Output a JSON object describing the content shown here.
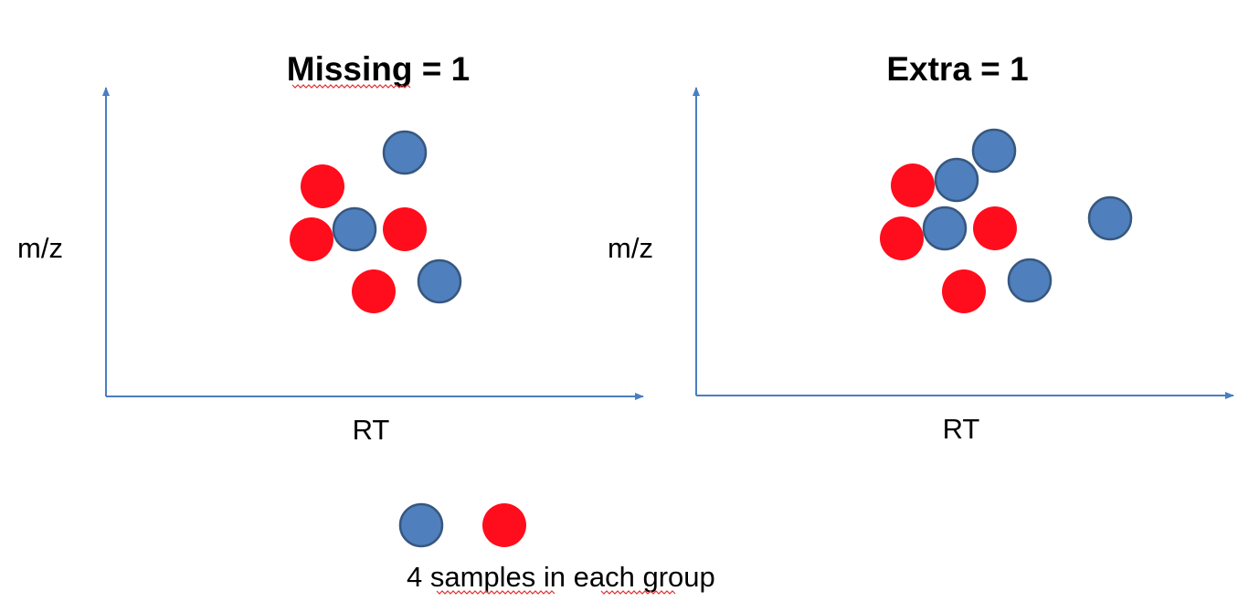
{
  "colors": {
    "axis": "#4a7ec0",
    "blue_fill": "#4f80bd",
    "blue_stroke": "#37577f",
    "red_fill": "#ff0d1c",
    "spellcheck_underline": "#e03030"
  },
  "panels": [
    {
      "title": "Missing = 1",
      "ylabel": "m/z",
      "xlabel": "RT",
      "blue_count": 3,
      "red_count": 4
    },
    {
      "title": "Extra = 1",
      "ylabel": "m/z",
      "xlabel": "RT",
      "blue_count": 5,
      "red_count": 4
    }
  ],
  "legend": {
    "caption": "4 samples in each group",
    "markers": [
      "blue-group",
      "red-group"
    ]
  }
}
